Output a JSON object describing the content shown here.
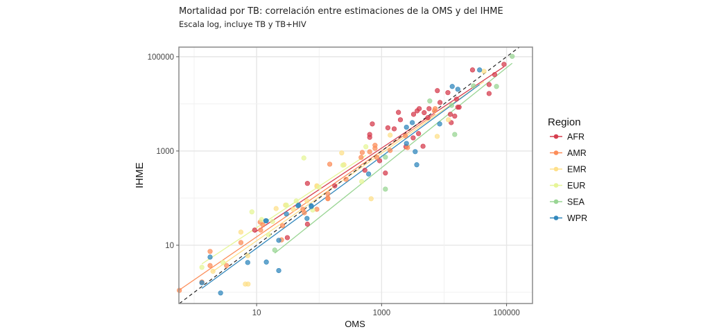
{
  "chart_data": {
    "type": "scatter",
    "title": "Mortalidad por TB: correlación entre estimaciones de la OMS y del IHME",
    "subtitle": "Escala log, incluye TB y TB+HIV",
    "xlabel": "OMS",
    "ylabel": "IHME",
    "xscale": "log10",
    "yscale": "log10",
    "xlim": [
      0.57,
      260000
    ],
    "ylim": [
      0.58,
      160000
    ],
    "xticks": [
      10,
      1000,
      100000
    ],
    "xtick_labels": [
      "10",
      "1000",
      "100000"
    ],
    "yticks": [
      10,
      1000,
      100000
    ],
    "ytick_labels": [
      "10",
      "1000",
      "100000"
    ],
    "grid": true,
    "reference_line": "y = x (dashed)",
    "fit_lines": "linear fit per region (log-log)",
    "legend": {
      "title": "Region",
      "position": "right"
    },
    "series": [
      {
        "name": "AFR",
        "color": "#d53e4f",
        "points": [
          [
            28500,
            52500
          ],
          [
            91000,
            69000
          ],
          [
            64500,
            41700
          ],
          [
            52500,
            25700
          ],
          [
            52500,
            16600
          ],
          [
            7800,
            19100
          ],
          [
            11500,
            17300
          ],
          [
            8600,
            10700
          ],
          [
            15800,
            12600
          ],
          [
            16600,
            8500
          ],
          [
            17400,
            8500
          ],
          [
            12600,
            6000
          ],
          [
            14800,
            5500
          ],
          [
            13000,
            4000
          ],
          [
            5750,
            7900
          ],
          [
            4800,
            6500
          ],
          [
            4000,
            7900
          ],
          [
            3700,
            7100
          ],
          [
            3250,
            6000
          ],
          [
            1860,
            6600
          ],
          [
            2000,
            4600
          ],
          [
            5500,
            5100
          ],
          [
            1260,
            3100
          ],
          [
            1590,
            2950
          ],
          [
            710,
            3750
          ],
          [
            645,
            2240
          ],
          [
            645,
            1950
          ],
          [
            3900,
            2340
          ],
          [
            3200,
            1900
          ],
          [
            4600,
            1260
          ],
          [
            2450,
            1230
          ],
          [
            930,
            620
          ],
          [
            540,
            390
          ],
          [
            1150,
            340
          ],
          [
            65,
            205
          ],
          [
            9.3,
            21
          ],
          [
            65,
            28
          ],
          [
            31,
            14.5
          ],
          [
            178,
            182
          ]
        ]
      },
      {
        "name": "AMR",
        "color": "#fc8d59",
        "points": [
          [
            1.8,
            7.4
          ],
          [
            1.8,
            3.7
          ],
          [
            1.33,
            1.66
          ],
          [
            3.3,
            3.7
          ],
          [
            5.6,
            11.4
          ],
          [
            0.58,
            1.1
          ],
          [
            11.4,
            31
          ],
          [
            11.6,
            21
          ],
          [
            12.6,
            27
          ],
          [
            26,
            26
          ],
          [
            25,
            13
          ],
          [
            55,
            58
          ],
          [
            58,
            49
          ],
          [
            92,
            58
          ],
          [
            138,
            100
          ],
          [
            138,
            123
          ],
          [
            270,
            250
          ],
          [
            490,
            930
          ],
          [
            470,
            730
          ],
          [
            645,
            960
          ],
          [
            785,
            1140
          ],
          [
            785,
            1320
          ],
          [
            1370,
            1030
          ],
          [
            840,
            730
          ],
          [
            2400,
            2090
          ],
          [
            2600,
            1180
          ],
          [
            7200,
            7900
          ],
          [
            7000,
            7100
          ],
          [
            148,
            525
          ],
          [
            138,
            97
          ]
        ]
      },
      {
        "name": "EMR",
        "color": "#fee08b",
        "points": [
          [
            43500,
            49000
          ],
          [
            11700,
            4600
          ],
          [
            7750,
            2040
          ],
          [
            680,
            97
          ],
          [
            1370,
            2170
          ],
          [
            230,
            910
          ],
          [
            250,
            510
          ],
          [
            92,
            178
          ],
          [
            20.5,
            60
          ],
          [
            29,
            71
          ],
          [
            5.6,
            19
          ],
          [
            2.0,
            2.8
          ],
          [
            6.6,
            1.5
          ],
          [
            7.3,
            1.5
          ],
          [
            7.2,
            6.0
          ],
          [
            64,
            87
          ],
          [
            92,
            183
          ],
          [
            38.6,
            58
          ]
        ]
      },
      {
        "name": "EUR",
        "color": "#e6f598",
        "points": [
          [
            1.33,
            3.4
          ],
          [
            8.4,
            51
          ],
          [
            12,
            35
          ],
          [
            18,
            32
          ],
          [
            30,
            71
          ],
          [
            43,
            87
          ],
          [
            79,
            56
          ],
          [
            2.9,
            4.3
          ],
          [
            15.5,
            16.6
          ],
          [
            57,
            710
          ],
          [
            560,
            1230
          ],
          [
            480,
            225
          ],
          [
            100,
            170
          ],
          [
            240,
            500
          ]
        ]
      },
      {
        "name": "SEA",
        "color": "#99d594",
        "points": [
          [
            123000,
            102000
          ],
          [
            69000,
            23400
          ],
          [
            5900,
            11500
          ],
          [
            14800,
            2240
          ],
          [
            29500,
            24000
          ],
          [
            13200,
            9300
          ],
          [
            1150,
            740
          ],
          [
            1150,
            155
          ],
          [
            19.5,
            7.9
          ]
        ]
      },
      {
        "name": "WPR",
        "color": "#3288bd",
        "points": [
          [
            37000,
            52500
          ],
          [
            13500,
            23400
          ],
          [
            16600,
            20400
          ],
          [
            8500,
            3750
          ],
          [
            3100,
            4000
          ],
          [
            2500,
            3200
          ],
          [
            2500,
            1450
          ],
          [
            3450,
            970
          ],
          [
            3650,
            510
          ],
          [
            620,
            325
          ],
          [
            75,
            69
          ],
          [
            47,
            71
          ],
          [
            64,
            37
          ],
          [
            30,
            46
          ],
          [
            14,
            33
          ],
          [
            1.8,
            5.6
          ],
          [
            1.33,
            1.6
          ],
          [
            2.65,
            0.97
          ],
          [
            7.2,
            4.3
          ],
          [
            14.3,
            4.4
          ],
          [
            22.6,
            2.9
          ],
          [
            14.3,
            33
          ],
          [
            22.6,
            12.7
          ],
          [
            46,
            69
          ],
          [
            75,
            66
          ]
        ]
      }
    ]
  }
}
